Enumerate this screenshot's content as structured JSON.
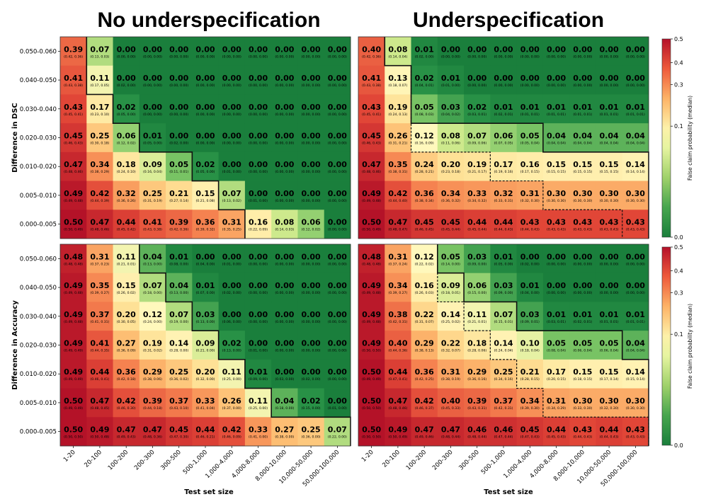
{
  "chart_data": {
    "type": "heatmap",
    "titles": [
      "No underspecification",
      "Underspecification"
    ],
    "xlabel": "Test set size",
    "x_categories": [
      "1-20",
      "20-100",
      "100-200",
      "200-300",
      "300-500",
      "500-1,000",
      "1,000-4,000",
      "4,000-8,000",
      "8,000-10,000",
      "10,000-50,000",
      "50,000-100,000"
    ],
    "y_categories": [
      "0.050-0.060",
      "0.040-0.050",
      "0.030-0.040",
      "0.020-0.030",
      "0.010-0.020",
      "0.005-0.010",
      "0.000-0.005"
    ],
    "colorbar": {
      "label": "False claim probability (median)",
      "ticks": [
        "0.5",
        "0.4",
        "0.3",
        "0.1",
        "0.0"
      ],
      "range": [
        0,
        0.5
      ]
    },
    "panels": [
      {
        "name": "dsc-no-underspecification",
        "ylabel": "Difference in DSC",
        "values": [
          [
            0.39,
            0.07,
            0.0,
            0.0,
            0.0,
            0.0,
            0.0,
            0.0,
            0.0,
            0.0,
            0.0
          ],
          [
            0.41,
            0.11,
            0.0,
            0.0,
            0.0,
            0.0,
            0.0,
            0.0,
            0.0,
            0.0,
            0.0
          ],
          [
            0.43,
            0.17,
            0.02,
            0.0,
            0.0,
            0.0,
            0.0,
            0.0,
            0.0,
            0.0,
            0.0
          ],
          [
            0.45,
            0.25,
            0.06,
            0.01,
            0.0,
            0.0,
            0.0,
            0.0,
            0.0,
            0.0,
            0.0
          ],
          [
            0.47,
            0.34,
            0.18,
            0.09,
            0.05,
            0.02,
            0.0,
            0.0,
            0.0,
            0.0,
            0.0
          ],
          [
            0.49,
            0.42,
            0.32,
            0.25,
            0.21,
            0.15,
            0.07,
            0.0,
            0.0,
            0.0,
            0.0
          ],
          [
            0.5,
            0.47,
            0.44,
            0.41,
            0.39,
            0.36,
            0.31,
            0.16,
            0.08,
            0.06,
            0.0
          ]
        ],
        "ci": [
          [
            "(0.42, 0.36)",
            "(0.13, 0.03)",
            "(0.00, 0.00)",
            "(0.00, 0.00)",
            "(0.00, 0.00)",
            "(0.00, 0.00)",
            "(0.00, 0.00)",
            "(0.00, 0.00)",
            "(0.00, 0.00)",
            "(0.00, 0.00)",
            "(0.00, 0.00)"
          ],
          [
            "(0.43, 0.38)",
            "(0.17, 0.05)",
            "(0.02, 0.00)",
            "(0.00, 0.00)",
            "(0.00, 0.00)",
            "(0.00, 0.00)",
            "(0.00, 0.00)",
            "(0.00, 0.00)",
            "(0.00, 0.00)",
            "(0.00, 0.00)",
            "(0.00, 0.00)"
          ],
          [
            "(0.45, 0.41)",
            "(0.23, 0.10)",
            "(0.05, 0.00)",
            "(0.00, 0.00)",
            "(0.00, 0.00)",
            "(0.00, 0.00)",
            "(0.00, 0.00)",
            "(0.00, 0.00)",
            "(0.00, 0.00)",
            "(0.00, 0.00)",
            "(0.00, 0.00)"
          ],
          [
            "(0.46, 0.43)",
            "(0.30, 0.18)",
            "(0.12, 0.02)",
            "(0.05, 0.00)",
            "(0.02, 0.00)",
            "(0.00, 0.00)",
            "(0.00, 0.00)",
            "(0.00, 0.00)",
            "(0.00, 0.00)",
            "(0.00, 0.00)",
            "(0.00, 0.00)"
          ],
          [
            "(0.48, 0.46)",
            "(0.38, 0.29)",
            "(0.24, 0.10)",
            "(0.16, 0.04)",
            "(0.11, 0.01)",
            "(0.05, 0.00)",
            "(0.01, 0.00)",
            "(0.00, 0.00)",
            "(0.00, 0.00)",
            "(0.00, 0.00)",
            "(0.00, 0.00)"
          ],
          [
            "(0.49, 0.48)",
            "(0.44, 0.39)",
            "(0.36, 0.26)",
            "(0.31, 0.19)",
            "(0.27, 0.14)",
            "(0.21, 0.08)",
            "(0.13, 0.02)",
            "(0.01, 0.00)",
            "(0.00, 0.00)",
            "(0.00, 0.00)",
            "(0.00, 0.00)"
          ],
          [
            "(0.50, 0.49)",
            "(0.48, 0.46)",
            "(0.45, 0.42)",
            "(0.43, 0.38)",
            "(0.42, 0.36)",
            "(0.39, 0.32)",
            "(0.35, 0.25)",
            "(0.22, 0.09)",
            "(0.14, 0.03)",
            "(0.12, 0.02)",
            "(0.00, 0.00)"
          ]
        ],
        "boundary": [
          1,
          1,
          2,
          3,
          5,
          6,
          7
        ],
        "dashed": null
      },
      {
        "name": "dsc-underspecification",
        "ylabel": "",
        "values": [
          [
            0.4,
            0.08,
            0.01,
            0.0,
            0.0,
            0.0,
            0.0,
            0.0,
            0.0,
            0.0,
            0.0
          ],
          [
            0.41,
            0.13,
            0.02,
            0.01,
            0.0,
            0.0,
            0.0,
            0.0,
            0.0,
            0.0,
            0.0
          ],
          [
            0.43,
            0.19,
            0.05,
            0.03,
            0.02,
            0.01,
            0.01,
            0.01,
            0.01,
            0.01,
            0.01
          ],
          [
            0.45,
            0.26,
            0.12,
            0.08,
            0.07,
            0.06,
            0.05,
            0.04,
            0.04,
            0.04,
            0.04
          ],
          [
            0.47,
            0.35,
            0.24,
            0.2,
            0.19,
            0.17,
            0.16,
            0.15,
            0.15,
            0.15,
            0.14
          ],
          [
            0.49,
            0.42,
            0.36,
            0.34,
            0.33,
            0.32,
            0.31,
            0.3,
            0.3,
            0.3,
            0.3
          ],
          [
            0.5,
            0.47,
            0.45,
            0.45,
            0.44,
            0.44,
            0.43,
            0.43,
            0.43,
            0.43,
            0.43
          ]
        ],
        "ci": [
          [
            "(0.42, 0.36)",
            "(0.14, 0.04)",
            "(0.02, 0.00)",
            "(0.00, 0.00)",
            "(0.00, 0.00)",
            "(0.00, 0.00)",
            "(0.00, 0.00)",
            "(0.00, 0.00)",
            "(0.00, 0.00)",
            "(0.00, 0.00)",
            "(0.00, 0.00)"
          ],
          [
            "(0.43, 0.38)",
            "(0.18, 0.07)",
            "(0.04, 0.01)",
            "(0.01, 0.00)",
            "(0.00, 0.00)",
            "(0.00, 0.00)",
            "(0.00, 0.00)",
            "(0.00, 0.00)",
            "(0.00, 0.00)",
            "(0.00, 0.00)",
            "(0.00, 0.00)"
          ],
          [
            "(0.45, 0.41)",
            "(0.24, 0.13)",
            "(0.08, 0.03)",
            "(0.04, 0.02)",
            "(0.03, 0.01)",
            "(0.02, 0.01)",
            "(0.01, 0.01)",
            "(0.01, 0.01)",
            "(0.01, 0.01)",
            "(0.01, 0.01)",
            "(0.01, 0.01)"
          ],
          [
            "(0.46, 0.43)",
            "(0.31, 0.21)",
            "(0.16, 0.09)",
            "(0.11, 0.06)",
            "(0.09, 0.06)",
            "(0.07, 0.05)",
            "(0.05, 0.04)",
            "(0.04, 0.04)",
            "(0.04, 0.04)",
            "(0.04, 0.04)",
            "(0.04, 0.04)"
          ],
          [
            "(0.48, 0.46)",
            "(0.38, 0.31)",
            "(0.28, 0.21)",
            "(0.23, 0.18)",
            "(0.21, 0.17)",
            "(0.19, 0.16)",
            "(0.17, 0.15)",
            "(0.15, 0.15)",
            "(0.15, 0.15)",
            "(0.15, 0.15)",
            "(0.14, 0.14)"
          ],
          [
            "(0.49, 0.48)",
            "(0.44, 0.40)",
            "(0.38, 0.34)",
            "(0.36, 0.32)",
            "(0.34, 0.32)",
            "(0.33, 0.31)",
            "(0.32, 0.30)",
            "(0.30, 0.30)",
            "(0.30, 0.30)",
            "(0.30, 0.30)",
            "(0.30, 0.30)"
          ],
          [
            "(0.50, 0.49)",
            "(0.48, 0.47)",
            "(0.46, 0.45)",
            "(0.45, 0.44)",
            "(0.45, 0.44)",
            "(0.44, 0.43)",
            "(0.44, 0.43)",
            "(0.43, 0.43)",
            "(0.43, 0.43)",
            "(0.43, 0.43)",
            "(0.43, 0.43)"
          ]
        ],
        "boundary": [
          1,
          2,
          2,
          7,
          11,
          11,
          11
        ],
        "dashed": [
          1,
          2,
          2,
          2,
          5,
          7,
          10
        ]
      },
      {
        "name": "accuracy-no-underspecification",
        "ylabel": "Difference in Accuracy",
        "values": [
          [
            0.48,
            0.31,
            0.11,
            0.04,
            0.01,
            0.0,
            0.0,
            0.0,
            0.0,
            0.0,
            0.0
          ],
          [
            0.49,
            0.35,
            0.15,
            0.07,
            0.04,
            0.01,
            0.0,
            0.0,
            0.0,
            0.0,
            0.0
          ],
          [
            0.49,
            0.37,
            0.2,
            0.12,
            0.07,
            0.03,
            0.0,
            0.0,
            0.0,
            0.0,
            0.0
          ],
          [
            0.49,
            0.41,
            0.27,
            0.19,
            0.14,
            0.09,
            0.02,
            0.0,
            0.0,
            0.0,
            0.0
          ],
          [
            0.49,
            0.44,
            0.36,
            0.29,
            0.25,
            0.2,
            0.11,
            0.01,
            0.0,
            0.0,
            0.0
          ],
          [
            0.5,
            0.47,
            0.42,
            0.39,
            0.37,
            0.33,
            0.26,
            0.11,
            0.04,
            0.02,
            0.0
          ],
          [
            0.5,
            0.49,
            0.47,
            0.47,
            0.45,
            0.44,
            0.42,
            0.33,
            0.27,
            0.25,
            0.07
          ]
        ],
        "ci": [
          [
            "(0.48, 0.48)",
            "(0.37, 0.23)",
            "(0.21, 0.01)",
            "(0.13, 0.00)",
            "(0.08, 0.00)",
            "(0.04, 0.00)",
            "(0.01, 0.00)",
            "(0.00, 0.00)",
            "(0.00, 0.00)",
            "(0.00, 0.00)",
            "(0.00, 0.00)"
          ],
          [
            "(0.49, 0.48)",
            "(0.39, 0.27)",
            "(0.26, 0.02)",
            "(0.18, 0.00)",
            "(0.13, 0.00)",
            "(0.07, 0.00)",
            "(0.02, 0.00)",
            "(0.00, 0.00)",
            "(0.00, 0.00)",
            "(0.00, 0.00)",
            "(0.00, 0.00)"
          ],
          [
            "(0.49, 0.48)",
            "(0.41, 0.31)",
            "(0.30, 0.05)",
            "(0.24, 0.00)",
            "(0.19, 0.00)",
            "(0.13, 0.00)",
            "(0.06, 0.00)",
            "(0.00, 0.00)",
            "(0.00, 0.00)",
            "(0.00, 0.00)",
            "(0.00, 0.00)"
          ],
          [
            "(0.49, 0.49)",
            "(0.44, 0.35)",
            "(0.36, 0.09)",
            "(0.31, 0.02)",
            "(0.28, 0.00)",
            "(0.21, 0.00)",
            "(0.13, 0.00)",
            "(0.01, 0.00)",
            "(0.00, 0.00)",
            "(0.00, 0.00)",
            "(0.00, 0.00)"
          ],
          [
            "(0.49, 0.49)",
            "(0.46, 0.41)",
            "(0.42, 0.18)",
            "(0.38, 0.06)",
            "(0.36, 0.02)",
            "(0.32, 0.00)",
            "(0.25, 0.00)",
            "(0.09, 0.00)",
            "(0.03, 0.00)",
            "(0.02, 0.00)",
            "(0.00, 0.00)"
          ],
          [
            "(0.49, 0.49)",
            "(0.48, 0.45)",
            "(0.46, 0.30)",
            "(0.44, 0.18)",
            "(0.43, 0.10)",
            "(0.41, 0.04)",
            "(0.37, 0.00)",
            "(0.25, 0.00)",
            "(0.18, 0.00)",
            "(0.15, 0.00)",
            "(0.01, 0.00)"
          ],
          [
            "(0.50, 0.50)",
            "(0.50, 0.48)",
            "(0.49, 0.43)",
            "(0.48, 0.36)",
            "(0.47, 0.30)",
            "(0.46, 0.21)",
            "(0.46, 0.09)",
            "(0.41, 0.00)",
            "(0.38, 0.00)",
            "(0.36, 0.00)",
            "(0.22, 0.00)"
          ]
        ],
        "boundary": [
          3,
          4,
          5,
          6,
          7,
          8,
          11
        ],
        "dashed": null
      },
      {
        "name": "accuracy-underspecification",
        "ylabel": "",
        "values": [
          [
            0.48,
            0.31,
            0.12,
            0.05,
            0.03,
            0.01,
            0.0,
            0.0,
            0.0,
            0.0,
            0.0
          ],
          [
            0.49,
            0.34,
            0.16,
            0.09,
            0.06,
            0.03,
            0.01,
            0.0,
            0.0,
            0.0,
            0.0
          ],
          [
            0.49,
            0.38,
            0.22,
            0.14,
            0.11,
            0.07,
            0.03,
            0.01,
            0.01,
            0.01,
            0.01
          ],
          [
            0.49,
            0.4,
            0.29,
            0.22,
            0.18,
            0.14,
            0.1,
            0.05,
            0.05,
            0.05,
            0.04
          ],
          [
            0.5,
            0.44,
            0.36,
            0.31,
            0.29,
            0.25,
            0.21,
            0.17,
            0.15,
            0.15,
            0.14
          ],
          [
            0.5,
            0.47,
            0.42,
            0.4,
            0.39,
            0.37,
            0.34,
            0.31,
            0.3,
            0.3,
            0.3
          ],
          [
            0.5,
            0.49,
            0.47,
            0.47,
            0.46,
            0.46,
            0.45,
            0.44,
            0.43,
            0.44,
            0.43
          ]
        ],
        "ci": [
          [
            "(0.48, 0.48)",
            "(0.37, 0.24)",
            "(0.22, 0.02)",
            "(0.14, 0.00)",
            "(0.09, 0.00)",
            "(0.05, 0.00)",
            "(0.02, 0.00)",
            "(0.00, 0.00)",
            "(0.00, 0.00)",
            "(0.00, 0.00)",
            "(0.00, 0.00)"
          ],
          [
            "(0.49, 0.48)",
            "(0.39, 0.27)",
            "(0.26, 0.03)",
            "(0.18, 0.01)",
            "(0.15, 0.00)",
            "(0.09, 0.00)",
            "(0.04, 0.00)",
            "(0.00, 0.00)",
            "(0.00, 0.00)",
            "(0.00, 0.00)",
            "(0.00, 0.00)"
          ],
          [
            "(0.49, 0.48)",
            "(0.42, 0.31)",
            "(0.31, 0.07)",
            "(0.25, 0.02)",
            "(0.21, 0.01)",
            "(0.15, 0.01)",
            "(0.09, 0.01)",
            "(0.03, 0.01)",
            "(0.02, 0.01)",
            "(0.01, 0.01)",
            "(0.01, 0.01)"
          ],
          [
            "(0.50, 0.50)",
            "(0.44, 0.36)",
            "(0.38, 0.13)",
            "(0.32, 0.07)",
            "(0.28, 0.06)",
            "(0.24, 0.04)",
            "(0.18, 0.04)",
            "(0.08, 0.04)",
            "(0.06, 0.04)",
            "(0.06, 0.04)",
            "(0.04, 0.04)"
          ],
          [
            "(0.49, 0.49)",
            "(0.47, 0.41)",
            "(0.42, 0.25)",
            "(0.38, 0.19)",
            "(0.36, 0.16)",
            "(0.34, 0.16)",
            "(0.28, 0.15)",
            "(0.20, 0.15)",
            "(0.18, 0.15)",
            "(0.17, 0.14)",
            "(0.15, 0.14)"
          ],
          [
            "(0.50, 0.50)",
            "(0.48, 0.46)",
            "(0.46, 0.37)",
            "(0.45, 0.33)",
            "(0.43, 0.31)",
            "(0.42, 0.31)",
            "(0.39, 0.30)",
            "(0.34, 0.29)",
            "(0.33, 0.30)",
            "(0.32, 0.30)",
            "(0.30, 0.30)"
          ],
          [
            "(0.50, 0.50)",
            "(0.50, 0.49)",
            "(0.49, 0.46)",
            "(0.48, 0.44)",
            "(0.48, 0.44)",
            "(0.47, 0.44)",
            "(0.47, 0.43)",
            "(0.45, 0.43)",
            "(0.44, 0.43)",
            "(0.44, 0.43)",
            "(0.43, 0.43)"
          ]
        ],
        "boundary": [
          3,
          4,
          6,
          10,
          11,
          11,
          11
        ],
        "dashed": [
          3,
          3,
          4,
          5,
          6,
          7,
          11
        ]
      }
    ]
  }
}
